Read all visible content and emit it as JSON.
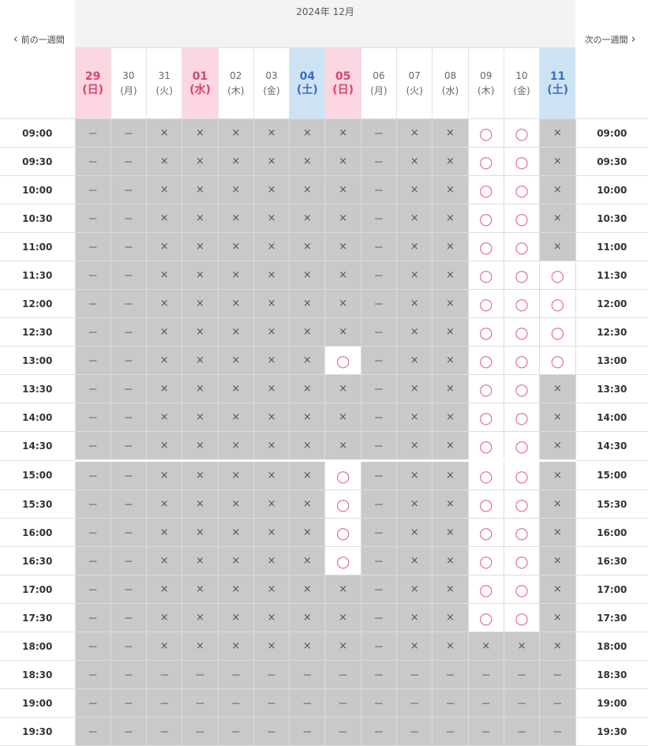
{
  "header": {
    "prev": "前の一週間",
    "month": "2024年 12月",
    "next": "次の一週間"
  },
  "days": [
    {
      "date": "29",
      "weekday": "(日)",
      "color": "#d5466c",
      "bg": "#fcd6e1"
    },
    {
      "date": "30",
      "weekday": "(月)"
    },
    {
      "date": "31",
      "weekday": "(火)"
    },
    {
      "date": "01",
      "weekday": "(水)",
      "color": "#d5466c",
      "bg": "#fcd6e1"
    },
    {
      "date": "02",
      "weekday": "(木)"
    },
    {
      "date": "03",
      "weekday": "(金)"
    },
    {
      "date": "04",
      "weekday": "(土)",
      "color": "#3d6fb8",
      "bg": "#cde3f4"
    },
    {
      "date": "05",
      "weekday": "(日)",
      "color": "#d5466c",
      "bg": "#fcd6e1"
    },
    {
      "date": "06",
      "weekday": "(月)"
    },
    {
      "date": "07",
      "weekday": "(火)"
    },
    {
      "date": "08",
      "weekday": "(水)"
    },
    {
      "date": "09",
      "weekday": "(木)"
    },
    {
      "date": "10",
      "weekday": "(金)"
    },
    {
      "date": "11",
      "weekday": "(土)",
      "color": "#3d6fb8",
      "bg": "#cde3f4"
    }
  ],
  "rows": [
    {
      "time": "09:00",
      "cells": [
        "－",
        "－",
        "×",
        "×",
        "×",
        "×",
        "×",
        "×",
        "－",
        "×",
        "×",
        "○",
        "○",
        "×"
      ]
    },
    {
      "time": "09:30",
      "cells": [
        "－",
        "－",
        "×",
        "×",
        "×",
        "×",
        "×",
        "×",
        "－",
        "×",
        "×",
        "○",
        "○",
        "×"
      ]
    },
    {
      "time": "10:00",
      "cells": [
        "－",
        "－",
        "×",
        "×",
        "×",
        "×",
        "×",
        "×",
        "－",
        "×",
        "×",
        "○",
        "○",
        "×"
      ]
    },
    {
      "time": "10:30",
      "cells": [
        "－",
        "－",
        "×",
        "×",
        "×",
        "×",
        "×",
        "×",
        "－",
        "×",
        "×",
        "○",
        "○",
        "×"
      ]
    },
    {
      "time": "11:00",
      "cells": [
        "－",
        "－",
        "×",
        "×",
        "×",
        "×",
        "×",
        "×",
        "－",
        "×",
        "×",
        "○",
        "○",
        "×"
      ]
    },
    {
      "time": "11:30",
      "cells": [
        "－",
        "－",
        "×",
        "×",
        "×",
        "×",
        "×",
        "×",
        "－",
        "×",
        "×",
        "○",
        "○",
        "○"
      ]
    },
    {
      "time": "12:00",
      "cells": [
        "－",
        "－",
        "×",
        "×",
        "×",
        "×",
        "×",
        "×",
        "－",
        "×",
        "×",
        "○",
        "○",
        "○"
      ]
    },
    {
      "time": "12:30",
      "cells": [
        "－",
        "－",
        "×",
        "×",
        "×",
        "×",
        "×",
        "×",
        "－",
        "×",
        "×",
        "○",
        "○",
        "○"
      ]
    },
    {
      "time": "13:00",
      "cells": [
        "－",
        "－",
        "×",
        "×",
        "×",
        "×",
        "×",
        "○",
        "－",
        "×",
        "×",
        "○",
        "○",
        "○"
      ]
    },
    {
      "time": "13:30",
      "cells": [
        "－",
        "－",
        "×",
        "×",
        "×",
        "×",
        "×",
        "×",
        "－",
        "×",
        "×",
        "○",
        "○",
        "×"
      ]
    },
    {
      "time": "14:00",
      "cells": [
        "－",
        "－",
        "×",
        "×",
        "×",
        "×",
        "×",
        "×",
        "－",
        "×",
        "×",
        "○",
        "○",
        "×"
      ]
    },
    {
      "time": "14:30",
      "cells": [
        "－",
        "－",
        "×",
        "×",
        "×",
        "×",
        "×",
        "×",
        "－",
        "×",
        "×",
        "○",
        "○",
        "×"
      ]
    },
    {
      "time": "15:00",
      "cells": [
        "－",
        "－",
        "×",
        "×",
        "×",
        "×",
        "×",
        "○",
        "－",
        "×",
        "×",
        "○",
        "○",
        "×"
      ]
    },
    {
      "time": "15:30",
      "cells": [
        "－",
        "－",
        "×",
        "×",
        "×",
        "×",
        "×",
        "○",
        "－",
        "×",
        "×",
        "○",
        "○",
        "×"
      ]
    },
    {
      "time": "16:00",
      "cells": [
        "－",
        "－",
        "×",
        "×",
        "×",
        "×",
        "×",
        "○",
        "－",
        "×",
        "×",
        "○",
        "○",
        "×"
      ]
    },
    {
      "time": "16:30",
      "cells": [
        "－",
        "－",
        "×",
        "×",
        "×",
        "×",
        "×",
        "○",
        "－",
        "×",
        "×",
        "○",
        "○",
        "×"
      ]
    },
    {
      "time": "17:00",
      "cells": [
        "－",
        "－",
        "×",
        "×",
        "×",
        "×",
        "×",
        "×",
        "－",
        "×",
        "×",
        "○",
        "○",
        "×"
      ]
    },
    {
      "time": "17:30",
      "cells": [
        "－",
        "－",
        "×",
        "×",
        "×",
        "×",
        "×",
        "×",
        "－",
        "×",
        "×",
        "○",
        "○",
        "×"
      ]
    },
    {
      "time": "18:00",
      "cells": [
        "－",
        "－",
        "×",
        "×",
        "×",
        "×",
        "×",
        "×",
        "－",
        "×",
        "×",
        "×",
        "×",
        "×"
      ]
    },
    {
      "time": "18:30",
      "cells": [
        "－",
        "－",
        "－",
        "－",
        "－",
        "－",
        "－",
        "－",
        "－",
        "－",
        "－",
        "－",
        "－",
        "－"
      ]
    },
    {
      "time": "19:00",
      "cells": [
        "－",
        "－",
        "－",
        "－",
        "－",
        "－",
        "－",
        "－",
        "－",
        "－",
        "－",
        "－",
        "－",
        "－"
      ]
    },
    {
      "time": "19:30",
      "cells": [
        "－",
        "－",
        "－",
        "－",
        "－",
        "－",
        "－",
        "－",
        "－",
        "－",
        "－",
        "－",
        "－",
        "－"
      ]
    }
  ]
}
